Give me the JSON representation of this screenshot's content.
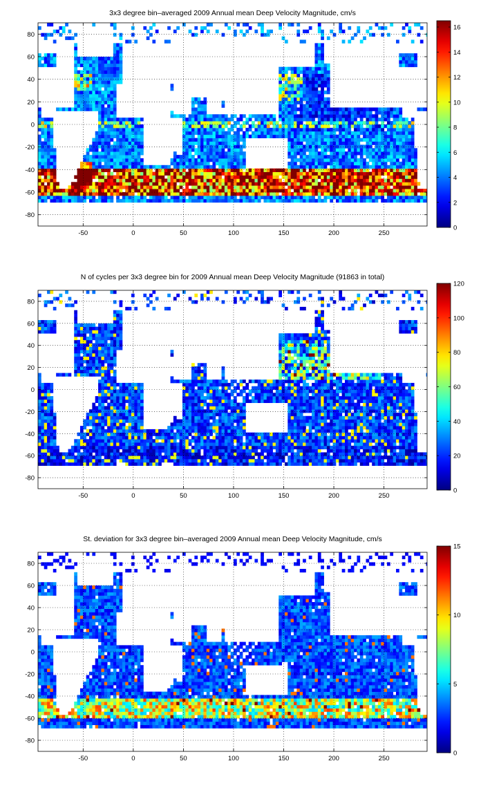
{
  "chart_data": [
    {
      "type": "heatmap",
      "title": "3x3 degree bin–averaged 2009 Annual mean Deep Velocity Magnitude, cm/s",
      "xlabel": "",
      "ylabel": "",
      "xlim": [
        -95,
        293
      ],
      "ylim": [
        -90,
        90
      ],
      "x_ticks": [
        -50,
        0,
        50,
        100,
        150,
        200,
        250
      ],
      "y_ticks": [
        -80,
        -60,
        -40,
        -20,
        0,
        20,
        40,
        60,
        80
      ],
      "grid": true,
      "colorbar": {
        "colormap": "jet",
        "min": 0,
        "max": 16.5,
        "ticks": [
          0,
          2,
          4,
          6,
          8,
          10,
          12,
          14,
          16
        ]
      },
      "bin_size_deg": 3,
      "field": "velocity"
    },
    {
      "type": "heatmap",
      "title": "N of cycles per 3x3 degree bin for 2009 Annual mean Deep Velocity Magnitude (91863 in total)",
      "xlabel": "",
      "ylabel": "",
      "xlim": [
        -95,
        293
      ],
      "ylim": [
        -90,
        90
      ],
      "x_ticks": [
        -50,
        0,
        50,
        100,
        150,
        200,
        250
      ],
      "y_ticks": [
        -80,
        -60,
        -40,
        -20,
        0,
        20,
        40,
        60,
        80
      ],
      "grid": true,
      "colorbar": {
        "colormap": "jet",
        "min": 0,
        "max": 120,
        "ticks": [
          0,
          20,
          40,
          60,
          80,
          100,
          120
        ]
      },
      "bin_size_deg": 3,
      "field": "count"
    },
    {
      "type": "heatmap",
      "title": "St. deviation for 3x3 degree bin–averaged 2009 Annual mean Deep Velocity Magnitude, cm/s",
      "xlabel": "",
      "ylabel": "",
      "xlim": [
        -95,
        293
      ],
      "ylim": [
        -90,
        90
      ],
      "x_ticks": [
        -50,
        0,
        50,
        100,
        150,
        200,
        250
      ],
      "y_ticks": [
        -80,
        -60,
        -40,
        -20,
        0,
        20,
        40,
        60,
        80
      ],
      "grid": true,
      "colorbar": {
        "colormap": "jet",
        "min": 0,
        "max": 15,
        "ticks": [
          0,
          5,
          10,
          15
        ]
      },
      "bin_size_deg": 3,
      "field": "std"
    }
  ],
  "colors": {
    "axis": "#000000",
    "grid": "#000000",
    "background": "#ffffff",
    "coast": "#000000"
  }
}
